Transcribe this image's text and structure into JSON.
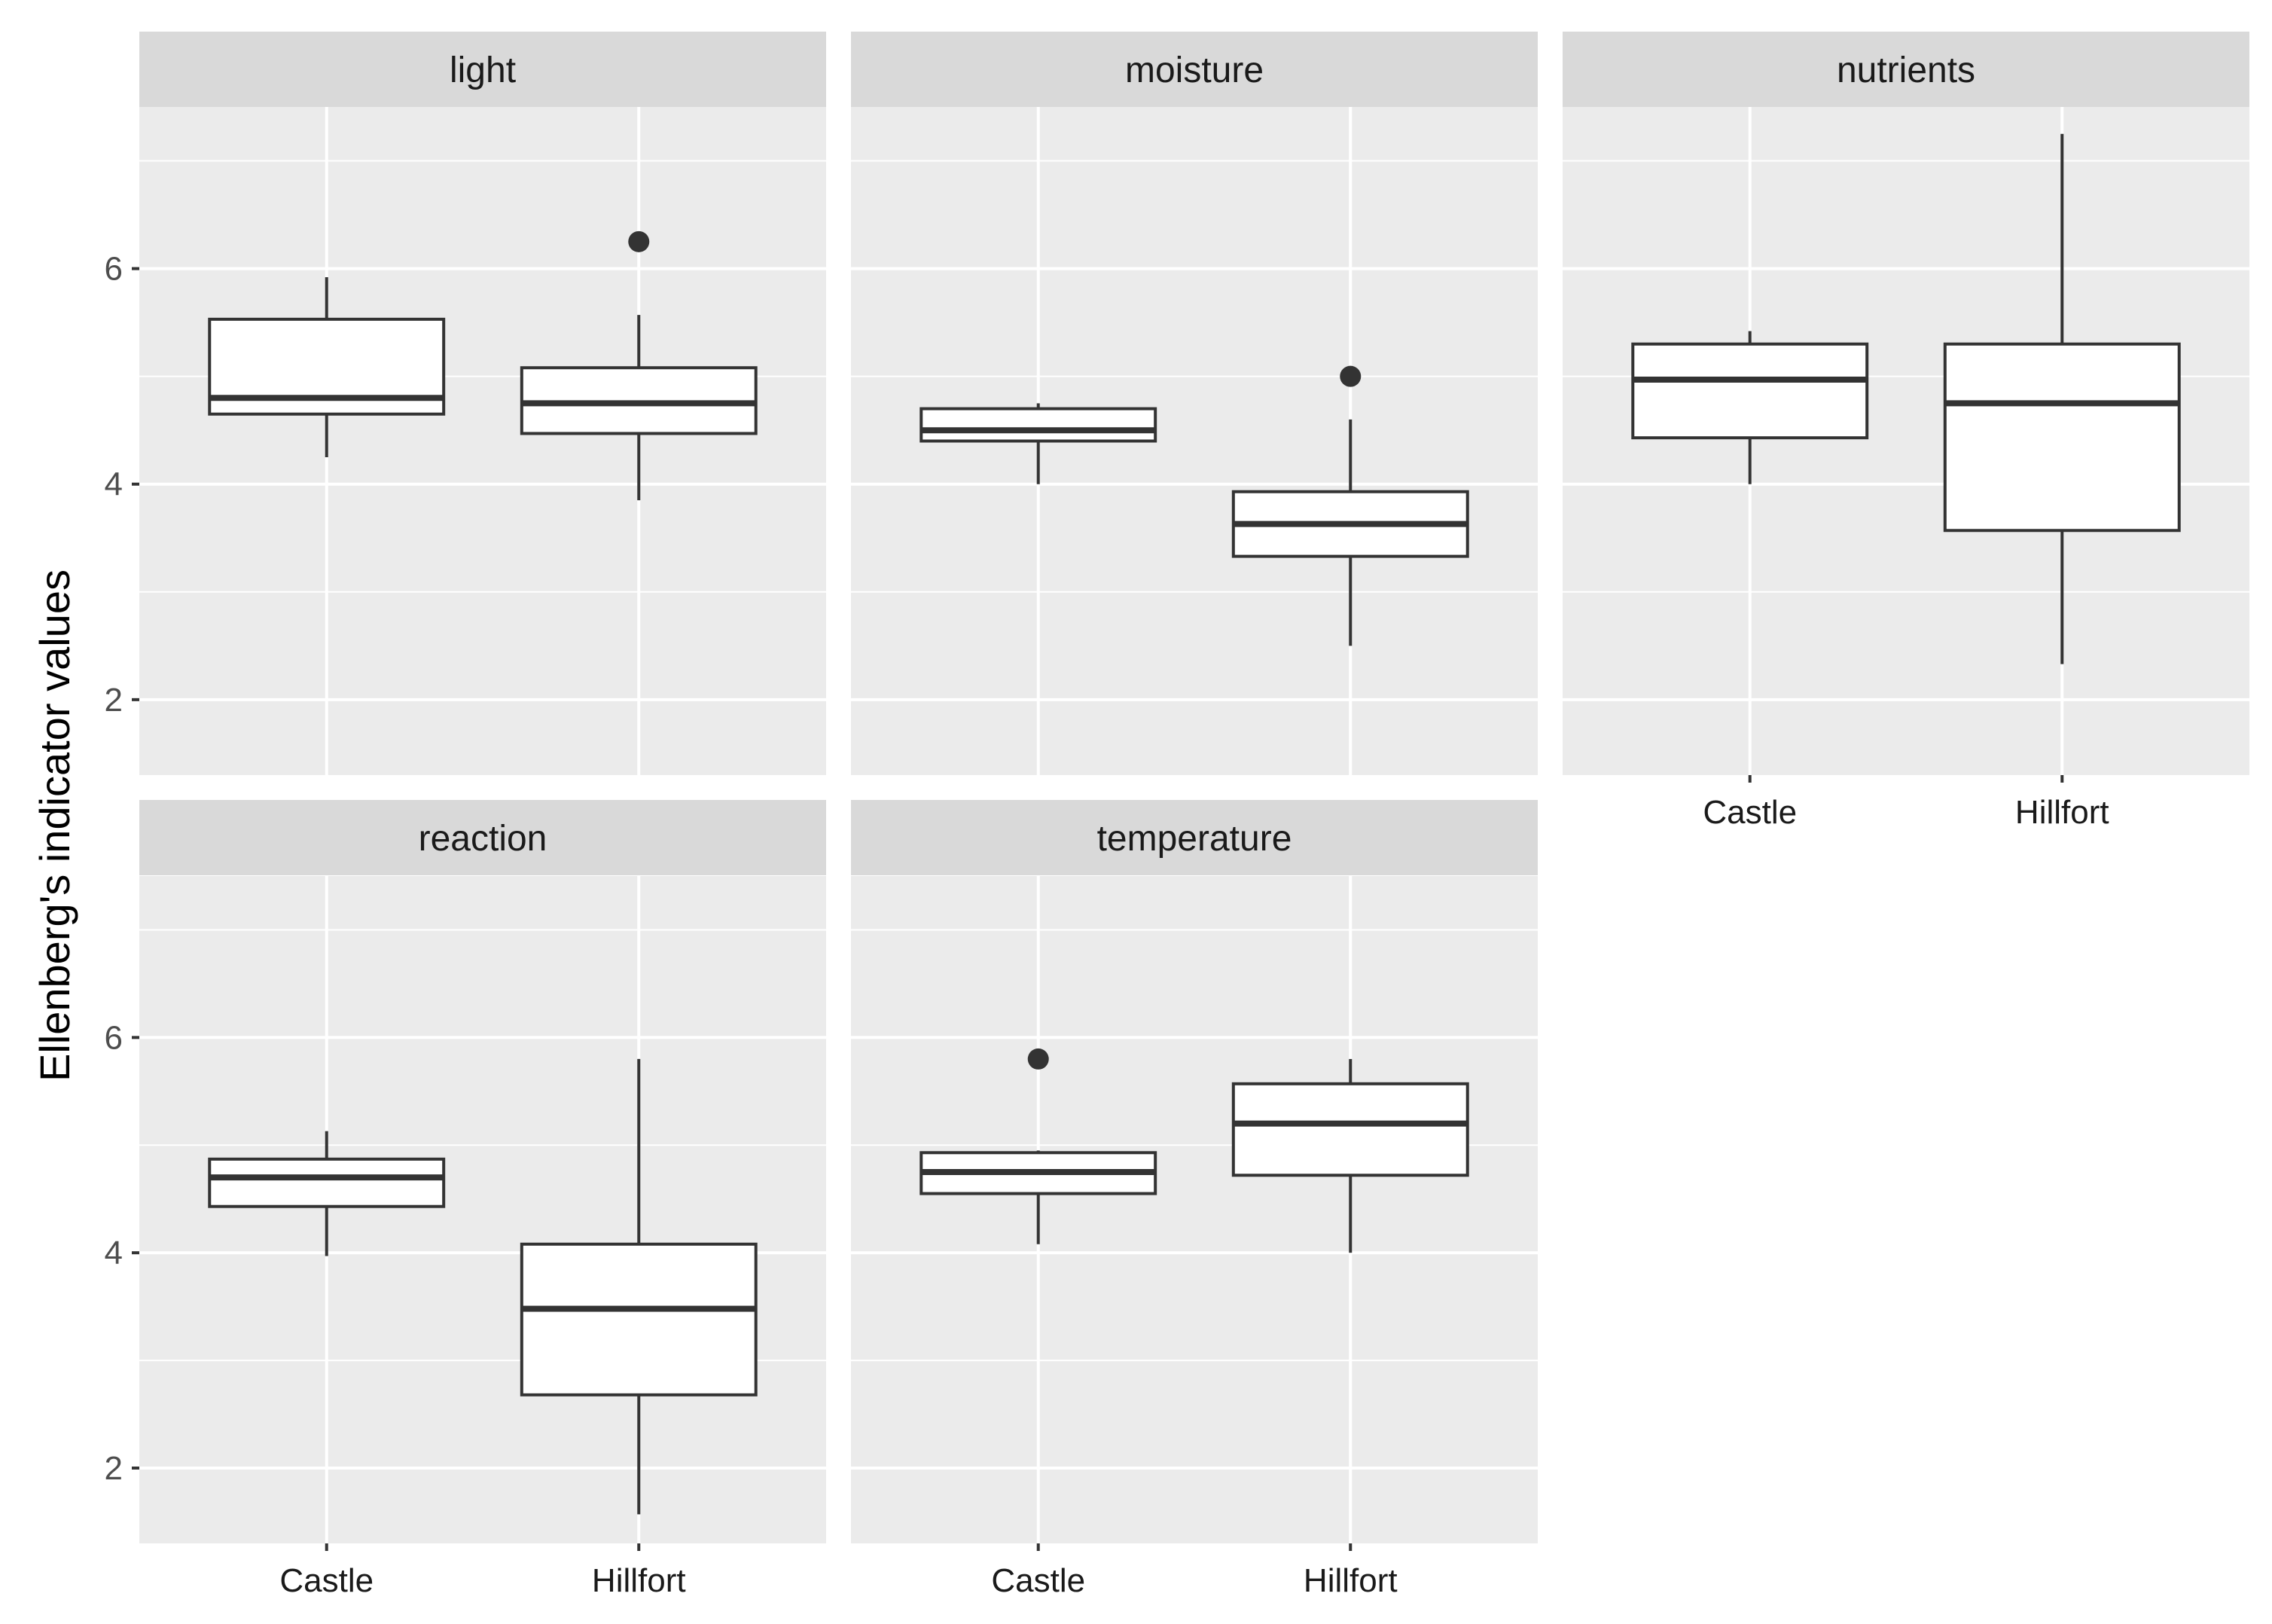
{
  "chart_data": {
    "type": "boxplot",
    "title": "",
    "xlabel": "",
    "ylabel": "Ellenberg's indicator values",
    "categories": [
      "Castle",
      "Hillfort"
    ],
    "y_ticks": [
      2,
      4,
      6
    ],
    "ylim": [
      1.3,
      7.5
    ],
    "grid": true,
    "facets": [
      {
        "name": "light",
        "boxes": [
          {
            "category": "Castle",
            "whisker_low": 4.25,
            "q1": 4.65,
            "median": 4.8,
            "q3": 5.53,
            "whisker_high": 5.92,
            "outliers": []
          },
          {
            "category": "Hillfort",
            "whisker_low": 3.85,
            "q1": 4.47,
            "median": 4.75,
            "q3": 5.08,
            "whisker_high": 5.57,
            "outliers": [
              6.25
            ]
          }
        ]
      },
      {
        "name": "moisture",
        "boxes": [
          {
            "category": "Castle",
            "whisker_low": 4.0,
            "q1": 4.4,
            "median": 4.5,
            "q3": 4.7,
            "whisker_high": 4.75,
            "outliers": []
          },
          {
            "category": "Hillfort",
            "whisker_low": 2.5,
            "q1": 3.33,
            "median": 3.63,
            "q3": 3.93,
            "whisker_high": 4.6,
            "outliers": [
              5.0
            ]
          }
        ]
      },
      {
        "name": "nutrients",
        "boxes": [
          {
            "category": "Castle",
            "whisker_low": 4.0,
            "q1": 4.43,
            "median": 4.97,
            "q3": 5.3,
            "whisker_high": 5.42,
            "outliers": []
          },
          {
            "category": "Hillfort",
            "whisker_low": 2.33,
            "q1": 3.57,
            "median": 4.75,
            "q3": 5.3,
            "whisker_high": 7.25,
            "outliers": []
          }
        ]
      },
      {
        "name": "reaction",
        "boxes": [
          {
            "category": "Castle",
            "whisker_low": 3.97,
            "q1": 4.43,
            "median": 4.7,
            "q3": 4.87,
            "whisker_high": 5.13,
            "outliers": []
          },
          {
            "category": "Hillfort",
            "whisker_low": 1.57,
            "q1": 2.68,
            "median": 3.48,
            "q3": 4.08,
            "whisker_high": 5.8,
            "outliers": []
          }
        ]
      },
      {
        "name": "temperature",
        "boxes": [
          {
            "category": "Castle",
            "whisker_low": 4.08,
            "q1": 4.55,
            "median": 4.75,
            "q3": 4.93,
            "whisker_high": 4.95,
            "outliers": [
              5.8
            ]
          },
          {
            "category": "Hillfort",
            "whisker_low": 4.0,
            "q1": 4.72,
            "median": 5.2,
            "q3": 5.57,
            "whisker_high": 5.8,
            "outliers": []
          }
        ]
      }
    ]
  }
}
